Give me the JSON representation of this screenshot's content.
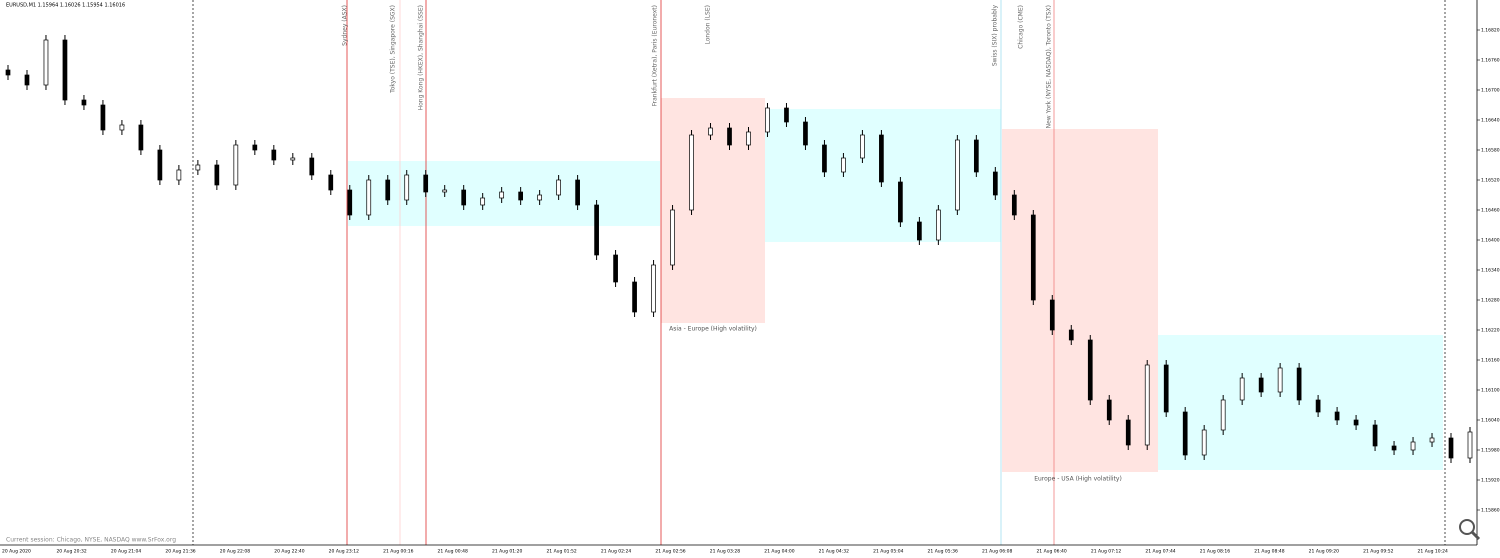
{
  "header": "EURUSD,M1  1.15964 1.16026 1.15954 1.16016",
  "sessions": [
    "Sydney (ASX)",
    "Tokyo (TSE), Singapore (SGX)",
    "Hong Kong (HKEX), Shanghai (SSE)",
    "Frankfurt (Xetra), Paris (Euronext)",
    "London (LSE)",
    "Swiss (SIX) probably",
    "Chicago (CME)",
    "New York (NYSE, NASDAQ), Toronto (TSX)"
  ],
  "zones": [
    "Asia - Europe (High volatility)",
    "Europe - USA (High volatility)"
  ],
  "footer": "Current session: Chicago, NYSE, NASDAQ www.SrFox.org",
  "chart_data": {
    "type": "candlestick",
    "color": "#000000",
    "open": [
      1.1674,
      1.1673,
      1.1671,
      1.168,
      1.1668,
      1.1667,
      1.1662,
      1.1663,
      1.1658,
      1.1652,
      1.1654,
      1.1655,
      1.1651,
      1.1659,
      1.1658,
      1.1656,
      1.16564,
      1.1653,
      1.165,
      1.1645,
      1.1652,
      1.1648,
      1.1653,
      1.16496,
      1.165,
      1.1647,
      1.16484,
      1.16496,
      1.1648,
      1.1649,
      1.1652,
      1.1647,
      1.1637,
      1.16316,
      1.16256,
      1.1635,
      1.1646,
      1.1661,
      1.16624,
      1.1659,
      1.16616,
      1.16664,
      1.16636,
      1.1659,
      1.16536,
      1.16564,
      1.1661,
      1.16516,
      1.16436,
      1.164,
      1.1646,
      1.166,
      1.16536,
      1.1649,
      1.1645,
      1.1628,
      1.1622,
      1.162,
      1.1608,
      1.1604,
      1.1599,
      1.1615,
      1.16056,
      1.1597,
      1.1602,
      1.1608,
      1.16124,
      1.16096,
      1.16144,
      1.1608,
      1.16056,
      1.1604,
      1.1603,
      1.15988,
      1.1598,
      1.15996,
      1.16004,
      1.15964
    ],
    "high": [
      1.1675,
      1.1674,
      1.1681,
      1.1681,
      1.1669,
      1.1668,
      1.1664,
      1.1664,
      1.1659,
      1.1655,
      1.1656,
      1.1656,
      1.166,
      1.166,
      1.1659,
      1.16574,
      1.16574,
      1.1654,
      1.1651,
      1.1653,
      1.1653,
      1.1654,
      1.1654,
      1.1651,
      1.1651,
      1.16494,
      1.16506,
      1.16506,
      1.165,
      1.1653,
      1.1653,
      1.1648,
      1.1638,
      1.16326,
      1.1636,
      1.1647,
      1.1662,
      1.16634,
      1.16634,
      1.16626,
      1.16674,
      1.16674,
      1.16646,
      1.166,
      1.16574,
      1.1662,
      1.1662,
      1.16526,
      1.16446,
      1.1647,
      1.1661,
      1.1661,
      1.16546,
      1.165,
      1.1646,
      1.1629,
      1.1623,
      1.1621,
      1.1609,
      1.1605,
      1.1616,
      1.1616,
      1.16066,
      1.1603,
      1.1609,
      1.16134,
      1.16134,
      1.16154,
      1.16154,
      1.1609,
      1.16066,
      1.1605,
      1.1604,
      1.15998,
      1.16006,
      1.16014,
      1.16014,
      1.16026
    ],
    "low": [
      1.1672,
      1.167,
      1.167,
      1.1667,
      1.1666,
      1.1661,
      1.1661,
      1.1657,
      1.1651,
      1.1651,
      1.1653,
      1.165,
      1.165,
      1.1657,
      1.1655,
      1.1655,
      1.1652,
      1.1649,
      1.1644,
      1.1644,
      1.1647,
      1.1647,
      1.16486,
      1.16486,
      1.1646,
      1.1646,
      1.16474,
      1.1647,
      1.1647,
      1.1648,
      1.1646,
      1.1636,
      1.16306,
      1.16246,
      1.16246,
      1.1634,
      1.1645,
      1.166,
      1.1658,
      1.1658,
      1.16606,
      1.16626,
      1.1658,
      1.16526,
      1.16526,
      1.16554,
      1.16506,
      1.16426,
      1.1639,
      1.1639,
      1.1645,
      1.16526,
      1.1648,
      1.1644,
      1.1627,
      1.1621,
      1.1619,
      1.1607,
      1.1603,
      1.1598,
      1.1598,
      1.16046,
      1.1596,
      1.1596,
      1.1601,
      1.1607,
      1.16086,
      1.16086,
      1.1607,
      1.16046,
      1.1603,
      1.1602,
      1.15978,
      1.1597,
      1.1597,
      1.15986,
      1.15954,
      1.15954
    ],
    "close": [
      1.1673,
      1.1671,
      1.168,
      1.1668,
      1.1667,
      1.1662,
      1.1663,
      1.1658,
      1.1652,
      1.1654,
      1.1655,
      1.1651,
      1.1659,
      1.1658,
      1.1656,
      1.16564,
      1.1653,
      1.165,
      1.1645,
      1.1652,
      1.1648,
      1.1653,
      1.16496,
      1.165,
      1.1647,
      1.16484,
      1.16496,
      1.1648,
      1.1649,
      1.1652,
      1.1647,
      1.1637,
      1.16316,
      1.16256,
      1.1635,
      1.1646,
      1.1661,
      1.16624,
      1.1659,
      1.16616,
      1.16664,
      1.16636,
      1.1659,
      1.16536,
      1.16564,
      1.1661,
      1.16516,
      1.16436,
      1.164,
      1.1646,
      1.166,
      1.16536,
      1.1649,
      1.1645,
      1.1628,
      1.1622,
      1.162,
      1.1608,
      1.1604,
      1.1599,
      1.1615,
      1.16056,
      1.1597,
      1.1602,
      1.1608,
      1.16124,
      1.16096,
      1.16144,
      1.1608,
      1.16056,
      1.1604,
      1.1603,
      1.15988,
      1.1598,
      1.15996,
      1.16004,
      1.15964,
      1.16016
    ],
    "ylim": [
      1.158,
      1.1688
    ],
    "yticks": [
      {
        "value": 1.1586,
        "label": "1.15860"
      },
      {
        "value": 1.1592,
        "label": "1.15920"
      },
      {
        "value": 1.1598,
        "label": "1.15980"
      },
      {
        "value": 1.1604,
        "label": "1.16040"
      },
      {
        "value": 1.161,
        "label": "1.16100"
      },
      {
        "value": 1.1616,
        "label": "1.16160"
      },
      {
        "value": 1.1622,
        "label": "1.16220"
      },
      {
        "value": 1.1628,
        "label": "1.16280"
      },
      {
        "value": 1.1634,
        "label": "1.16340"
      },
      {
        "value": 1.164,
        "label": "1.16400"
      },
      {
        "value": 1.1646,
        "label": "1.16460"
      },
      {
        "value": 1.1652,
        "label": "1.16520"
      },
      {
        "value": 1.1658,
        "label": "1.16580"
      },
      {
        "value": 1.1664,
        "label": "1.16640"
      },
      {
        "value": 1.167,
        "label": "1.16700"
      },
      {
        "value": 1.1676,
        "label": "1.16760"
      },
      {
        "value": 1.1682,
        "label": "1.16820"
      }
    ],
    "time_labels": [
      "20 Aug 2020",
      "20 Aug 20:32",
      "20 Aug 21:04",
      "20 Aug 21:36",
      "20 Aug 22:08",
      "20 Aug 22:40",
      "20 Aug 23:12",
      "21 Aug 00:16",
      "21 Aug 00:48",
      "21 Aug 01:20",
      "21 Aug 01:52",
      "21 Aug 02:24",
      "21 Aug 02:56",
      "21 Aug 03:28",
      "21 Aug 04:00",
      "21 Aug 04:32",
      "21 Aug 05:04",
      "21 Aug 05:36",
      "21 Aug 06:08",
      "21 Aug 06:40",
      "21 Aug 07:12",
      "21 Aug 07:44",
      "21 Aug 08:16",
      "21 Aug 08:48",
      "21 Aug 09:20",
      "21 Aug 09:52",
      "21 Aug 10:24"
    ]
  }
}
